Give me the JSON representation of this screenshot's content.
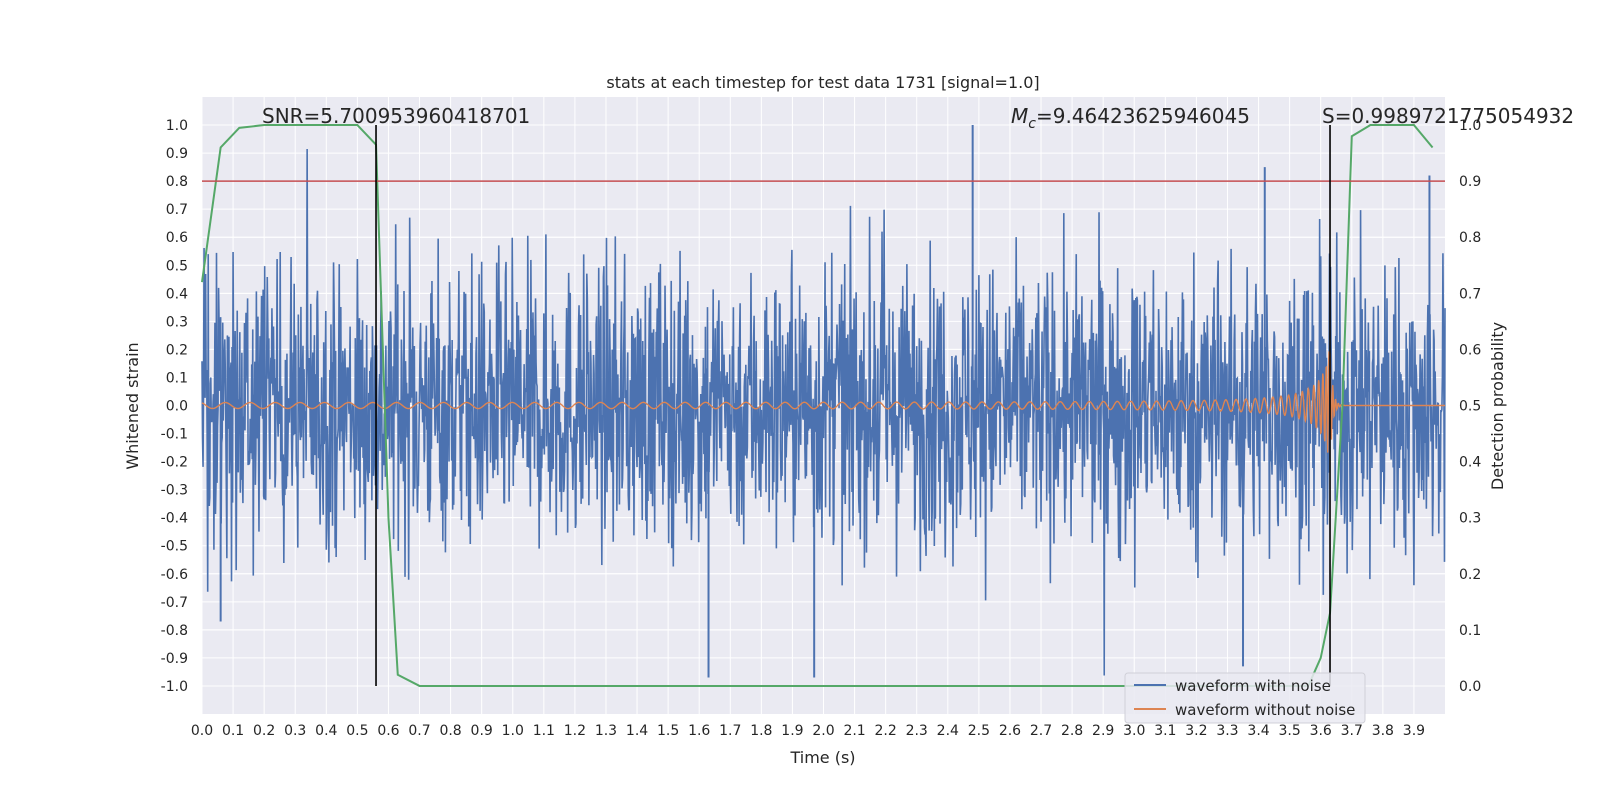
{
  "chart_data": {
    "type": "line",
    "title": "stats at each timestep for test data 1731 [signal=1.0]",
    "xlabel": "Time (s)",
    "ylabel": "Whitened strain",
    "ylabel_right": "Detection probability",
    "xlim": [
      0.0,
      4.0
    ],
    "ylim": [
      -1.1,
      1.1
    ],
    "ylim_right": [
      -0.05,
      1.05
    ],
    "x_ticks": [
      0.0,
      0.1,
      0.2,
      0.3,
      0.4,
      0.5,
      0.6,
      0.7,
      0.8,
      0.9,
      1.0,
      1.1,
      1.2,
      1.3,
      1.4,
      1.5,
      1.6,
      1.7,
      1.8,
      1.9,
      2.0,
      2.1,
      2.2,
      2.3,
      2.4,
      2.5,
      2.6,
      2.7,
      2.8,
      2.9,
      3.0,
      3.1,
      3.2,
      3.3,
      3.4,
      3.5,
      3.6,
      3.7,
      3.8,
      3.9
    ],
    "x_tick_labels": [
      "0.0",
      "0.1",
      "0.2",
      "0.3",
      "0.4",
      "0.5",
      "0.6",
      "0.7",
      "0.8",
      "0.9",
      "1.0",
      "1.1",
      "1.2",
      "1.3",
      "1.4",
      "1.5",
      "1.6",
      "1.7",
      "1.8",
      "1.9",
      "2.0",
      "2.1",
      "2.2",
      "2.3",
      "2.4",
      "2.5",
      "2.6",
      "2.7",
      "2.8",
      "2.9",
      "3.0",
      "3.1",
      "3.2",
      "3.3",
      "3.4",
      "3.5",
      "3.6",
      "3.7",
      "3.8",
      "3.9"
    ],
    "y_ticks": [
      1.0,
      0.9,
      0.8,
      0.7,
      0.6,
      0.5,
      0.4,
      0.3,
      0.2,
      0.1,
      0.0,
      -0.1,
      -0.2,
      -0.3,
      -0.4,
      -0.5,
      -0.6,
      -0.7,
      -0.8,
      -0.9,
      -1.0
    ],
    "y_tick_labels": [
      "1.0",
      "0.9",
      "0.8",
      "0.7",
      "0.6",
      "0.5",
      "0.4",
      "0.3",
      "0.2",
      "0.1",
      "0.0",
      "-0.1",
      "-0.2",
      "-0.3",
      "-0.4",
      "-0.5",
      "-0.6",
      "-0.7",
      "-0.8",
      "-0.9",
      "-1.0"
    ],
    "y_right_ticks": [
      1.0,
      0.9,
      0.8,
      0.7,
      0.6,
      0.5,
      0.4,
      0.3,
      0.2,
      0.1,
      0.0
    ],
    "y_right_tick_labels": [
      "1.0",
      "0.9",
      "0.8",
      "0.7",
      "0.6",
      "0.5",
      "0.4",
      "0.3",
      "0.2",
      "0.1",
      "0.0"
    ],
    "annotations": {
      "snr": "SNR=5.700953960418701",
      "mc_symbol": "M",
      "mc_sub": "c",
      "mc_value": "=9.46423625946045",
      "s": "S=0.9989721775054932"
    },
    "threshold": {
      "value": 0.9,
      "axis": "right",
      "color": "#c44e52"
    },
    "vlines": [
      0.56,
      3.63
    ],
    "legend": {
      "placement": "lower-right",
      "entries": [
        "waveform with noise",
        "waveform without noise"
      ]
    },
    "series": [
      {
        "name": "waveform with noise",
        "color": "#4c72b0",
        "description": "dense whitened noise, roughly amplitude +/-0.6, seeded",
        "spikes": [
          [
            2.48,
            1.0
          ],
          [
            1.63,
            -0.97
          ],
          [
            1.97,
            -0.97
          ],
          [
            3.42,
            0.85
          ],
          [
            3.95,
            0.82
          ],
          [
            0.06,
            -0.77
          ],
          [
            3.35,
            -0.93
          ]
        ]
      },
      {
        "name": "waveform without noise",
        "color": "#dd8452",
        "chirp": {
          "t_start": 0.0,
          "t_merge": 3.63,
          "amp_start": 0.01,
          "amp_merge": 0.22
        }
      },
      {
        "name": "detection probability",
        "color": "#55a868",
        "axis": "right",
        "x": [
          0.0,
          0.06,
          0.12,
          0.2,
          0.3,
          0.4,
          0.5,
          0.56,
          0.6,
          0.63,
          0.7,
          0.8,
          1.0,
          1.5,
          2.0,
          2.5,
          3.0,
          3.4,
          3.5,
          3.56,
          3.6,
          3.63,
          3.67,
          3.7,
          3.76,
          3.83,
          3.9,
          3.96
        ],
        "y": [
          0.72,
          0.96,
          0.995,
          1.0,
          1.0,
          1.0,
          1.0,
          0.965,
          0.3,
          0.02,
          0.0,
          0.0,
          0.0,
          0.0,
          0.0,
          0.0,
          0.0,
          0.0,
          0.0,
          0.0,
          0.05,
          0.13,
          0.5,
          0.98,
          1.0,
          1.0,
          1.0,
          0.96
        ]
      }
    ]
  }
}
